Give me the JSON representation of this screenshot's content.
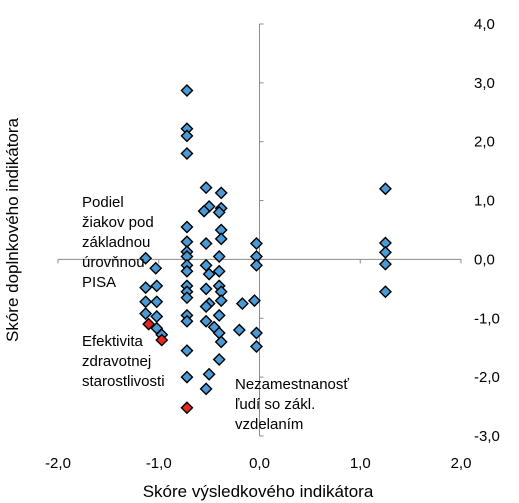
{
  "chart_data": {
    "type": "scatter",
    "title": "",
    "xlabel": "Skóre výsledkového indikátora",
    "ylabel": "Skóre doplnkového indikátora",
    "xlim": [
      -2.0,
      2.0
    ],
    "ylim": [
      -3.0,
      4.0
    ],
    "x_ticks": [
      "-2,0",
      "-1,0",
      "0,0",
      "1,0",
      "2,0"
    ],
    "y_ticks": [
      "4,0",
      "3,0",
      "2,0",
      "1,0",
      "0,0",
      "-1,0",
      "-2,0",
      "-3,0"
    ],
    "grid": false,
    "legend": "none",
    "colors": {
      "default": "#4a9ad8",
      "highlight": "#e8251f",
      "outline": "#000000"
    },
    "annotations": [
      {
        "lines": [
          "Podiel",
          "žiakov pod",
          "základnou",
          "úrovňnou",
          "PISA"
        ]
      },
      {
        "lines": [
          "Efektivita",
          "zdravotnej",
          "starostlivosti"
        ]
      },
      {
        "lines": [
          "Nezamestnanosť",
          "ľudí so zákl.",
          "vzdelaním"
        ]
      }
    ],
    "series": [
      {
        "points": [
          [
            -1.13,
            0.02
          ],
          [
            -1.03,
            -0.15
          ],
          [
            -1.02,
            -0.45
          ],
          [
            -1.13,
            -0.48
          ],
          [
            -1.13,
            -0.72
          ],
          [
            -1.02,
            -0.72
          ],
          [
            -1.13,
            -0.92
          ],
          [
            -1.02,
            -0.97
          ],
          [
            -1.02,
            -1.17
          ],
          [
            -0.97,
            -1.28
          ],
          [
            -0.72,
            2.87
          ],
          [
            -0.72,
            2.22
          ],
          [
            -0.72,
            2.1
          ],
          [
            -0.72,
            1.8
          ],
          [
            -0.72,
            0.55
          ],
          [
            -0.72,
            0.3
          ],
          [
            -0.72,
            0.13
          ],
          [
            -0.72,
            0.05
          ],
          [
            -0.72,
            -0.1
          ],
          [
            -0.72,
            -0.2
          ],
          [
            -0.72,
            -0.45
          ],
          [
            -0.72,
            -0.55
          ],
          [
            -0.72,
            -0.65
          ],
          [
            -0.72,
            -0.95
          ],
          [
            -0.72,
            -1.05
          ],
          [
            -0.72,
            -1.55
          ],
          [
            -0.72,
            -2.0
          ],
          [
            -0.53,
            1.22
          ],
          [
            -0.5,
            0.9
          ],
          [
            -0.55,
            0.82
          ],
          [
            -0.38,
            1.13
          ],
          [
            -0.38,
            0.87
          ],
          [
            -0.4,
            0.8
          ],
          [
            -0.38,
            0.5
          ],
          [
            -0.38,
            0.35
          ],
          [
            -0.4,
            0.05
          ],
          [
            -0.53,
            0.27
          ],
          [
            -0.53,
            -0.1
          ],
          [
            -0.5,
            -0.25
          ],
          [
            -0.4,
            -0.2
          ],
          [
            -0.4,
            -0.45
          ],
          [
            -0.53,
            -0.5
          ],
          [
            -0.38,
            -0.55
          ],
          [
            -0.5,
            -0.75
          ],
          [
            -0.53,
            -0.8
          ],
          [
            -0.38,
            -0.7
          ],
          [
            -0.4,
            -0.95
          ],
          [
            -0.53,
            -1.05
          ],
          [
            -0.45,
            -1.15
          ],
          [
            -0.4,
            -1.25
          ],
          [
            -0.38,
            -1.4
          ],
          [
            -0.4,
            -1.7
          ],
          [
            -0.5,
            -1.95
          ],
          [
            -0.53,
            -2.2
          ],
          [
            -0.03,
            0.27
          ],
          [
            -0.03,
            0.05
          ],
          [
            -0.03,
            -0.1
          ],
          [
            -0.05,
            -0.7
          ],
          [
            -0.17,
            -0.75
          ],
          [
            -0.03,
            -1.25
          ],
          [
            -0.2,
            -1.2
          ],
          [
            -0.03,
            -1.48
          ],
          [
            1.25,
            1.2
          ],
          [
            1.25,
            0.28
          ],
          [
            1.25,
            0.12
          ],
          [
            1.25,
            -0.08
          ],
          [
            1.25,
            -0.55
          ]
        ]
      },
      {
        "points": [
          [
            -1.1,
            -1.1
          ],
          [
            -0.97,
            -1.37
          ],
          [
            -0.72,
            -2.52
          ]
        ]
      }
    ]
  }
}
